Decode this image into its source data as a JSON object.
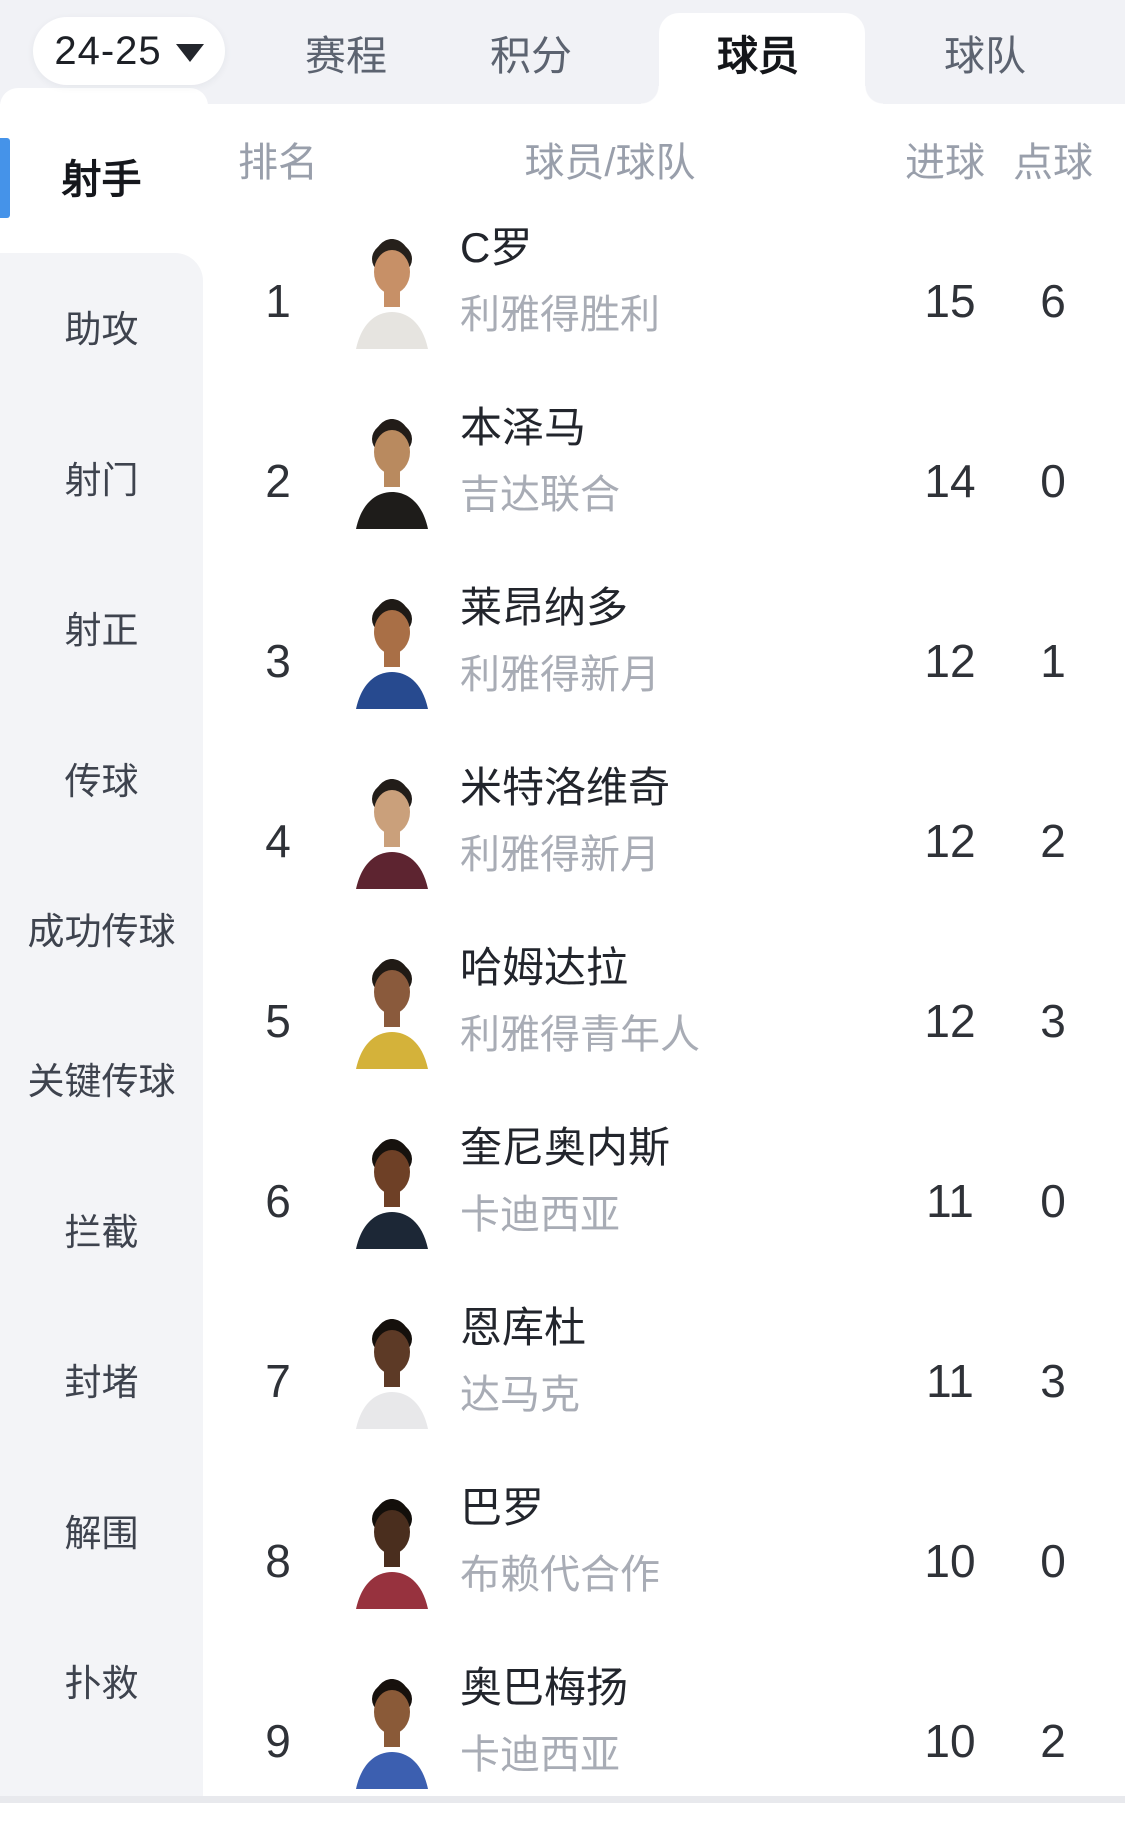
{
  "season": {
    "label": "24-25",
    "icon": "caret-down-icon"
  },
  "tabs": [
    {
      "label": "赛程",
      "active": false
    },
    {
      "label": "积分",
      "active": false
    },
    {
      "label": "球员",
      "active": true
    },
    {
      "label": "球队",
      "active": false
    }
  ],
  "sidebar": {
    "active_item": "射手",
    "items": [
      "射手",
      "助攻",
      "射门",
      "射正",
      "传球",
      "成功传球",
      "关键传球",
      "拦截",
      "封堵",
      "解围",
      "扑救"
    ]
  },
  "table": {
    "headers": {
      "rank": "排名",
      "player": "球员/球队",
      "goals": "进球",
      "penalties": "点球"
    },
    "rows": [
      {
        "rank": "1",
        "name": "C罗",
        "team": "利雅得胜利",
        "goals": "15",
        "penalties": "6",
        "avatar": {
          "shirt": "#e6e4e0",
          "skin": "#c79067",
          "hair": "#26201b"
        }
      },
      {
        "rank": "2",
        "name": "本泽马",
        "team": "吉达联合",
        "goals": "14",
        "penalties": "0",
        "avatar": {
          "shirt": "#1e1c1a",
          "skin": "#b98a5f",
          "hair": "#221c18"
        }
      },
      {
        "rank": "3",
        "name": "莱昂纳多",
        "team": "利雅得新月",
        "goals": "12",
        "penalties": "1",
        "avatar": {
          "shirt": "#274a8f",
          "skin": "#a96f46",
          "hair": "#1f1a16"
        }
      },
      {
        "rank": "4",
        "name": "米特洛维奇",
        "team": "利雅得新月",
        "goals": "12",
        "penalties": "2",
        "avatar": {
          "shirt": "#5d2430",
          "skin": "#caa07b",
          "hair": "#221d19"
        }
      },
      {
        "rank": "5",
        "name": "哈姆达拉",
        "team": "利雅得青年人",
        "goals": "12",
        "penalties": "3",
        "avatar": {
          "shirt": "#d4b23a",
          "skin": "#8a5a3c",
          "hair": "#201a15"
        }
      },
      {
        "rank": "6",
        "name": "奎尼奥内斯",
        "team": "卡迪西亚",
        "goals": "11",
        "penalties": "0",
        "avatar": {
          "shirt": "#1c2736",
          "skin": "#6e4026",
          "hair": "#17120e"
        }
      },
      {
        "rank": "7",
        "name": "恩库杜",
        "team": "达马克",
        "goals": "11",
        "penalties": "3",
        "avatar": {
          "shirt": "#e8e8ea",
          "skin": "#5d3a26",
          "hair": "#15100c"
        }
      },
      {
        "rank": "8",
        "name": "巴罗",
        "team": "布赖代合作",
        "goals": "10",
        "penalties": "0",
        "avatar": {
          "shirt": "#97323e",
          "skin": "#4a2e1e",
          "hair": "#130f0b"
        }
      },
      {
        "rank": "9",
        "name": "奥巴梅扬",
        "team": "卡迪西亚",
        "goals": "10",
        "penalties": "2",
        "avatar": {
          "shirt": "#3c5fb0",
          "skin": "#8a5a38",
          "hair": "#17110d"
        }
      }
    ]
  },
  "colors": {
    "topbar_bg": "#f1f2f6",
    "accent_blue": "#4593e9",
    "panel_gray": "#f3f4f7",
    "tab_inactive": "#5c6370",
    "tab_active": "#14161a",
    "header_text": "#999fab",
    "team_text": "#a8acb5",
    "name_text": "#22252c",
    "number_text": "#2f3238",
    "bottom_strip": "#e8e9ed"
  }
}
